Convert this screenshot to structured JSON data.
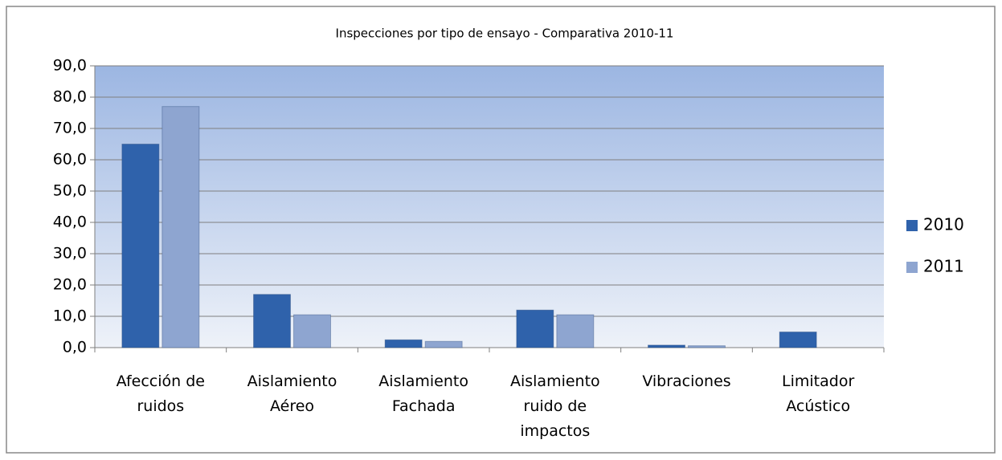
{
  "chart_data": {
    "type": "bar",
    "title": "Inspecciones por tipo de ensayo - Comparativa 2010-11",
    "categories": [
      "Afección de ruidos",
      "Aislamiento Aéreo",
      "Aislamiento Fachada",
      "Aislamiento ruido de impactos",
      "Vibraciones",
      "Limitador Acústico"
    ],
    "series": [
      {
        "name": "2010",
        "color": "#2f62ab",
        "values": [
          65,
          17,
          2.5,
          12,
          0.8,
          5
        ]
      },
      {
        "name": "2011",
        "color": "#8ea5d0",
        "values": [
          77,
          10.5,
          2,
          10.5,
          0.6,
          0
        ]
      }
    ],
    "ylim": [
      0,
      90
    ],
    "yticks": [
      {
        "value": 0,
        "label": "0,0"
      },
      {
        "value": 10,
        "label": "10,0"
      },
      {
        "value": 20,
        "label": "20,0"
      },
      {
        "value": 30,
        "label": "30,0"
      },
      {
        "value": 40,
        "label": "40,0"
      },
      {
        "value": 50,
        "label": "50,0"
      },
      {
        "value": 60,
        "label": "60,0"
      },
      {
        "value": 70,
        "label": "70,0"
      },
      {
        "value": 80,
        "label": "80,0"
      },
      {
        "value": 90,
        "label": "90,0"
      }
    ],
    "grid": true,
    "legend": "right"
  }
}
